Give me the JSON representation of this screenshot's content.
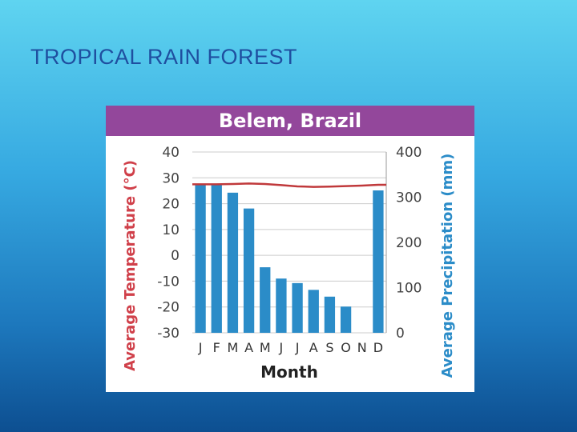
{
  "slide": {
    "title": "TROPICAL RAIN FOREST"
  },
  "colors": {
    "title_bar": "#93479b",
    "bars": "#2b8cc8",
    "temperature_line": "#c0393b",
    "left_axis_label": "#d0404a",
    "right_axis_label": "#2b8cc8",
    "grid": "#cccccc"
  },
  "chart_data": {
    "type": "bar",
    "title": "Belem, Brazil",
    "xlabel": "Month",
    "categories": [
      "J",
      "F",
      "M",
      "A",
      "M",
      "J",
      "J",
      "A",
      "S",
      "O",
      "N",
      "D"
    ],
    "y_left": {
      "label": "Average Temperature (°C)",
      "ylim": [
        -30,
        40
      ],
      "ticks": [
        "40",
        "30",
        "20",
        "10",
        "0",
        "-10",
        "-20",
        "-30"
      ]
    },
    "y_right": {
      "label": "Average Precipitation (mm)",
      "ylim": [
        0,
        400
      ],
      "ticks": [
        "400",
        "300",
        "200",
        "100",
        "0"
      ]
    },
    "grid": true,
    "series": [
      {
        "kind": "bar",
        "axis": "right",
        "values": [
          330,
          327,
          310,
          275,
          145,
          120,
          110,
          95,
          80,
          58,
          0,
          315
        ]
      },
      {
        "kind": "line",
        "axis": "left",
        "values": [
          27.5,
          27.5,
          27.6,
          27.8,
          27.6,
          27.2,
          26.7,
          26.5,
          26.6,
          26.8,
          27.0,
          27.3
        ]
      }
    ]
  }
}
